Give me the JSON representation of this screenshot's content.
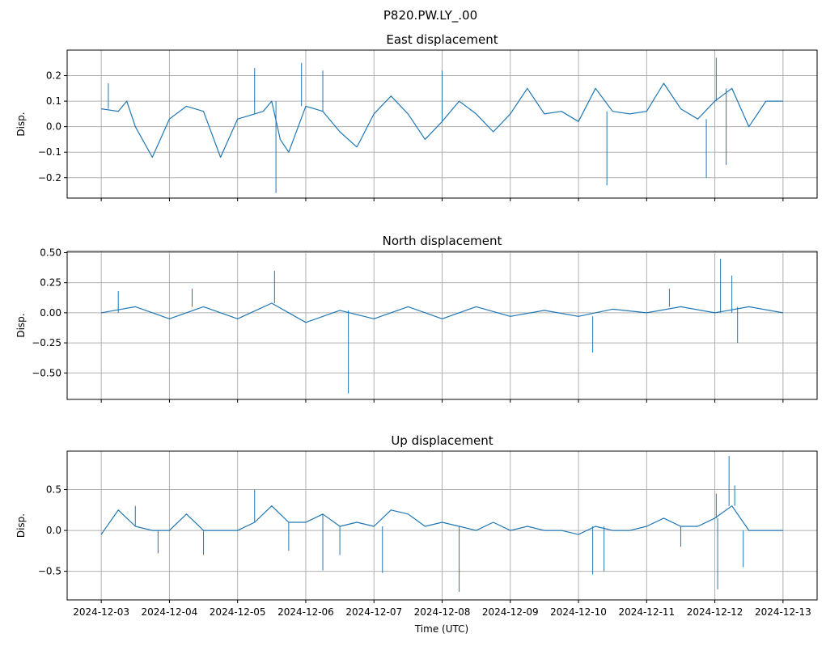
{
  "figure": {
    "suptitle": "P820.PW.LY_.00",
    "xlabel": "Time (UTC)"
  },
  "colors": {
    "line": "#1f77b4",
    "grid": "#b0b0b0",
    "axis": "#000000"
  },
  "chart_data": [
    {
      "type": "line",
      "title": "East displacement",
      "ylabel": "Disp.",
      "xlim": [
        "2024-12-02T12:00",
        "2024-12-13T12:00"
      ],
      "ylim": [
        -0.28,
        0.3
      ],
      "yticks": [
        -0.2,
        -0.1,
        0.0,
        0.1,
        0.2
      ],
      "ytick_labels": [
        "−0.2",
        "−0.1",
        "0.0",
        "0.1",
        "0.2"
      ],
      "xtick_labels": [],
      "grid": true,
      "series": [
        {
          "x": [
            "2024-12-03T00:00",
            "2024-12-03T06:00",
            "2024-12-03T09:00",
            "2024-12-03T12:00",
            "2024-12-03T18:00",
            "2024-12-04T00:00",
            "2024-12-04T06:00",
            "2024-12-04T12:00",
            "2024-12-04T18:00",
            "2024-12-05T00:00",
            "2024-12-05T06:00",
            "2024-12-05T09:00",
            "2024-12-05T12:00",
            "2024-12-05T15:00",
            "2024-12-05T18:00",
            "2024-12-06T00:00",
            "2024-12-06T06:00",
            "2024-12-06T12:00",
            "2024-12-06T18:00",
            "2024-12-07T00:00",
            "2024-12-07T06:00",
            "2024-12-07T12:00",
            "2024-12-07T18:00",
            "2024-12-08T00:00",
            "2024-12-08T06:00",
            "2024-12-08T12:00",
            "2024-12-08T18:00",
            "2024-12-09T00:00",
            "2024-12-09T06:00",
            "2024-12-09T12:00",
            "2024-12-09T18:00",
            "2024-12-10T00:00",
            "2024-12-10T06:00",
            "2024-12-10T12:00",
            "2024-12-10T18:00",
            "2024-12-11T00:00",
            "2024-12-11T06:00",
            "2024-12-11T12:00",
            "2024-12-11T18:00",
            "2024-12-12T00:00",
            "2024-12-12T06:00",
            "2024-12-12T12:00",
            "2024-12-12T18:00",
            "2024-12-13T00:00"
          ],
          "y": [
            0.07,
            0.06,
            0.1,
            0.0,
            -0.12,
            0.03,
            0.08,
            0.06,
            -0.12,
            0.03,
            0.05,
            0.06,
            0.1,
            -0.05,
            -0.1,
            0.08,
            0.06,
            -0.02,
            -0.08,
            0.05,
            0.12,
            0.05,
            -0.05,
            0.02,
            0.1,
            0.05,
            -0.02,
            0.05,
            0.15,
            0.05,
            0.06,
            0.02,
            0.15,
            0.06,
            0.05,
            0.06,
            0.17,
            0.07,
            0.03,
            0.1,
            0.15,
            0.0,
            0.1,
            0.1
          ]
        }
      ],
      "spikes": [
        {
          "x": "2024-12-03T02:30",
          "y": 0.17
        },
        {
          "x": "2024-12-05T06:00",
          "y": 0.23
        },
        {
          "x": "2024-12-05T13:30",
          "y": -0.26
        },
        {
          "x": "2024-12-05T22:30",
          "y": 0.25
        },
        {
          "x": "2024-12-06T06:00",
          "y": 0.22
        },
        {
          "x": "2024-12-08T00:00",
          "y": 0.22
        },
        {
          "x": "2024-12-10T10:00",
          "y": -0.23
        },
        {
          "x": "2024-12-11T21:00",
          "y": -0.2
        },
        {
          "x": "2024-12-12T00:30",
          "y": 0.27
        },
        {
          "x": "2024-12-12T04:00",
          "y": -0.15
        }
      ]
    },
    {
      "type": "line",
      "title": "North displacement",
      "ylabel": "Disp.",
      "xlim": [
        "2024-12-02T12:00",
        "2024-12-13T12:00"
      ],
      "ylim": [
        -0.72,
        0.51
      ],
      "yticks": [
        -0.5,
        -0.25,
        0.0,
        0.25,
        0.5
      ],
      "ytick_labels": [
        "−0.50",
        "−0.25",
        "0.00",
        "0.25",
        "0.50"
      ],
      "xtick_labels": [],
      "grid": true,
      "series": [
        {
          "x": [
            "2024-12-03T00:00",
            "2024-12-03T12:00",
            "2024-12-04T00:00",
            "2024-12-04T12:00",
            "2024-12-05T00:00",
            "2024-12-05T12:00",
            "2024-12-06T00:00",
            "2024-12-06T12:00",
            "2024-12-07T00:00",
            "2024-12-07T12:00",
            "2024-12-08T00:00",
            "2024-12-08T12:00",
            "2024-12-09T00:00",
            "2024-12-09T12:00",
            "2024-12-10T00:00",
            "2024-12-10T12:00",
            "2024-12-11T00:00",
            "2024-12-11T12:00",
            "2024-12-12T00:00",
            "2024-12-12T12:00",
            "2024-12-13T00:00"
          ],
          "y": [
            0.0,
            0.05,
            -0.05,
            0.05,
            -0.05,
            0.08,
            -0.08,
            0.02,
            -0.05,
            0.05,
            -0.05,
            0.05,
            -0.03,
            0.02,
            -0.03,
            0.03,
            0.0,
            0.05,
            0.0,
            0.05,
            0.0
          ]
        }
      ],
      "spikes": [
        {
          "x": "2024-12-03T06:00",
          "y": 0.18
        },
        {
          "x": "2024-12-04T08:00",
          "y": 0.2
        },
        {
          "x": "2024-12-05T13:00",
          "y": 0.35
        },
        {
          "x": "2024-12-06T15:00",
          "y": -0.67
        },
        {
          "x": "2024-12-10T05:00",
          "y": -0.33
        },
        {
          "x": "2024-12-11T08:00",
          "y": 0.2
        },
        {
          "x": "2024-12-12T02:00",
          "y": 0.45
        },
        {
          "x": "2024-12-12T06:00",
          "y": 0.31
        },
        {
          "x": "2024-12-12T08:00",
          "y": -0.25
        }
      ]
    },
    {
      "type": "line",
      "title": "Up displacement",
      "ylabel": "Disp.",
      "xlim": [
        "2024-12-02T12:00",
        "2024-12-13T12:00"
      ],
      "ylim": [
        -0.85,
        0.97
      ],
      "yticks": [
        -0.5,
        0.0,
        0.5
      ],
      "ytick_labels": [
        "−0.5",
        "0.0",
        "0.5"
      ],
      "xticks": [
        "2024-12-03",
        "2024-12-04",
        "2024-12-05",
        "2024-12-06",
        "2024-12-07",
        "2024-12-08",
        "2024-12-09",
        "2024-12-10",
        "2024-12-11",
        "2024-12-12",
        "2024-12-13"
      ],
      "xtick_labels": [
        "2024-12-03",
        "2024-12-04",
        "2024-12-05",
        "2024-12-06",
        "2024-12-07",
        "2024-12-08",
        "2024-12-09",
        "2024-12-10",
        "2024-12-11",
        "2024-12-12",
        "2024-12-13"
      ],
      "grid": true,
      "series": [
        {
          "x": [
            "2024-12-03T00:00",
            "2024-12-03T06:00",
            "2024-12-03T12:00",
            "2024-12-03T18:00",
            "2024-12-04T00:00",
            "2024-12-04T06:00",
            "2024-12-04T12:00",
            "2024-12-04T18:00",
            "2024-12-05T00:00",
            "2024-12-05T06:00",
            "2024-12-05T12:00",
            "2024-12-05T18:00",
            "2024-12-06T00:00",
            "2024-12-06T06:00",
            "2024-12-06T12:00",
            "2024-12-06T18:00",
            "2024-12-07T00:00",
            "2024-12-07T06:00",
            "2024-12-07T12:00",
            "2024-12-07T18:00",
            "2024-12-08T00:00",
            "2024-12-08T06:00",
            "2024-12-08T12:00",
            "2024-12-08T18:00",
            "2024-12-09T00:00",
            "2024-12-09T06:00",
            "2024-12-09T12:00",
            "2024-12-09T18:00",
            "2024-12-10T00:00",
            "2024-12-10T06:00",
            "2024-12-10T12:00",
            "2024-12-10T18:00",
            "2024-12-11T00:00",
            "2024-12-11T06:00",
            "2024-12-11T12:00",
            "2024-12-11T18:00",
            "2024-12-12T00:00",
            "2024-12-12T06:00",
            "2024-12-12T12:00",
            "2024-12-12T18:00",
            "2024-12-13T00:00"
          ],
          "y": [
            -0.05,
            0.25,
            0.05,
            0.0,
            0.0,
            0.2,
            0.0,
            0.0,
            0.0,
            0.1,
            0.3,
            0.1,
            0.1,
            0.2,
            0.05,
            0.1,
            0.05,
            0.25,
            0.2,
            0.05,
            0.1,
            0.05,
            0.0,
            0.1,
            0.0,
            0.05,
            0.0,
            0.0,
            -0.05,
            0.05,
            0.0,
            0.0,
            0.05,
            0.15,
            0.05,
            0.05,
            0.15,
            0.3,
            0.0,
            0.0,
            0.0
          ]
        }
      ],
      "spikes": [
        {
          "x": "2024-12-03T12:00",
          "y": 0.3
        },
        {
          "x": "2024-12-03T20:00",
          "y": -0.28
        },
        {
          "x": "2024-12-04T12:00",
          "y": -0.3
        },
        {
          "x": "2024-12-05T06:00",
          "y": 0.5
        },
        {
          "x": "2024-12-05T18:00",
          "y": -0.25
        },
        {
          "x": "2024-12-06T06:00",
          "y": -0.49
        },
        {
          "x": "2024-12-06T12:00",
          "y": -0.3
        },
        {
          "x": "2024-12-07T03:00",
          "y": -0.52
        },
        {
          "x": "2024-12-08T06:00",
          "y": -0.75
        },
        {
          "x": "2024-12-10T05:00",
          "y": -0.54
        },
        {
          "x": "2024-12-10T09:00",
          "y": -0.5
        },
        {
          "x": "2024-12-11T12:00",
          "y": -0.2
        },
        {
          "x": "2024-12-12T00:30",
          "y": 0.45
        },
        {
          "x": "2024-12-12T01:00",
          "y": -0.72
        },
        {
          "x": "2024-12-12T05:00",
          "y": 0.91
        },
        {
          "x": "2024-12-12T07:00",
          "y": 0.55
        },
        {
          "x": "2024-12-12T10:00",
          "y": -0.45
        }
      ]
    }
  ]
}
